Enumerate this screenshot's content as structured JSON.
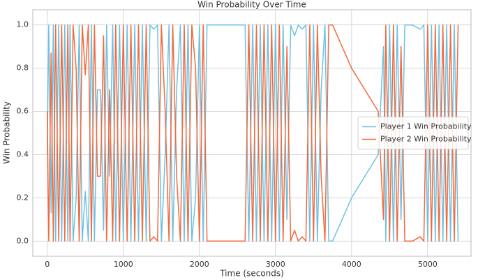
{
  "chart_data": {
    "type": "line",
    "title": "Win Probability Over Time",
    "x_label": "Time (seconds)",
    "y_label": "Win Probability",
    "x": [
      0,
      20,
      50,
      80,
      110,
      150,
      190,
      230,
      270,
      300,
      340,
      380,
      420,
      460,
      500,
      540,
      580,
      620,
      660,
      700,
      740,
      780,
      820,
      860,
      900,
      950,
      1000,
      1050,
      1100,
      1150,
      1200,
      1250,
      1300,
      1350,
      1400,
      1450,
      1500,
      1550,
      1600,
      1650,
      1700,
      1750,
      1800,
      1850,
      1900,
      1950,
      2000,
      2050,
      2100,
      2200,
      2400,
      2600,
      2650,
      2700,
      2750,
      2800,
      2850,
      2900,
      2950,
      3000,
      3050,
      3100,
      3150,
      3200,
      3250,
      3300,
      3350,
      3400,
      3450,
      3500,
      3550,
      3600,
      3650,
      3700,
      3750,
      4000,
      4350,
      4420,
      4450,
      4500,
      4550,
      4600,
      4650,
      4700,
      4800,
      4900,
      4950,
      5000,
      5050,
      5100,
      5150,
      5200,
      5250,
      5300,
      5350,
      5400
    ],
    "series": [
      {
        "name": "Player 1 Win Probability",
        "color": "#6ec1e4",
        "values": [
          0.4,
          1.0,
          0.13,
          1.0,
          0.0,
          1.0,
          0.0,
          1.0,
          0.0,
          1.0,
          0.0,
          0.2,
          1.0,
          0.0,
          0.23,
          0.0,
          1.0,
          0.0,
          0.7,
          0.7,
          0.05,
          1.0,
          0.3,
          1.0,
          0.0,
          1.0,
          0.0,
          1.0,
          0.0,
          1.0,
          0.0,
          1.0,
          0.0,
          1.0,
          0.98,
          1.0,
          0.0,
          0.4,
          1.0,
          0.0,
          0.7,
          1.0,
          0.0,
          1.0,
          0.0,
          0.2,
          1.0,
          0.0,
          1.0,
          1.0,
          1.0,
          1.0,
          0.0,
          1.0,
          0.0,
          1.0,
          0.0,
          1.0,
          0.0,
          1.0,
          0.0,
          1.0,
          0.1,
          1.0,
          0.95,
          1.0,
          0.98,
          1.0,
          0.0,
          1.0,
          0.0,
          0.7,
          1.0,
          0.0,
          0.0,
          0.2,
          0.4,
          0.9,
          0.0,
          1.0,
          0.0,
          1.0,
          0.1,
          1.0,
          1.0,
          0.98,
          1.0,
          0.0,
          1.0,
          0.0,
          1.0,
          0.0,
          1.0,
          0.0,
          1.0,
          0.0
        ]
      },
      {
        "name": "Player 2 Win Probability",
        "color": "#f26a3d",
        "values": [
          0.6,
          0.0,
          0.87,
          0.0,
          1.0,
          0.0,
          1.0,
          0.0,
          1.0,
          0.0,
          1.0,
          0.8,
          0.0,
          1.0,
          0.77,
          1.0,
          0.0,
          1.0,
          0.3,
          0.3,
          0.95,
          0.0,
          0.7,
          0.0,
          1.0,
          0.0,
          1.0,
          0.0,
          1.0,
          0.0,
          1.0,
          0.0,
          1.0,
          0.0,
          0.02,
          0.0,
          1.0,
          0.6,
          0.0,
          1.0,
          0.3,
          0.0,
          1.0,
          0.0,
          1.0,
          0.8,
          0.0,
          1.0,
          0.0,
          0.0,
          0.0,
          0.0,
          1.0,
          0.0,
          1.0,
          0.0,
          1.0,
          0.0,
          1.0,
          0.0,
          1.0,
          0.0,
          0.9,
          0.0,
          0.05,
          0.0,
          0.02,
          0.0,
          1.0,
          0.0,
          1.0,
          0.3,
          0.0,
          1.0,
          1.0,
          0.8,
          0.6,
          0.1,
          1.0,
          0.0,
          1.0,
          0.0,
          0.9,
          0.0,
          0.0,
          0.02,
          0.0,
          1.0,
          0.0,
          1.0,
          0.0,
          1.0,
          0.0,
          1.0,
          0.0,
          1.0
        ]
      }
    ],
    "xlim": [
      -190,
      5570
    ],
    "ylim": [
      -0.07,
      1.07
    ],
    "xticks": [
      0,
      1000,
      2000,
      3000,
      4000,
      5000
    ],
    "yticks": [
      {
        "value": 0,
        "label": "0.0"
      },
      0.2,
      0.4,
      0.6,
      0.8,
      {
        "value": 1,
        "label": "1.0"
      }
    ],
    "grid": true,
    "legend": "center right"
  }
}
